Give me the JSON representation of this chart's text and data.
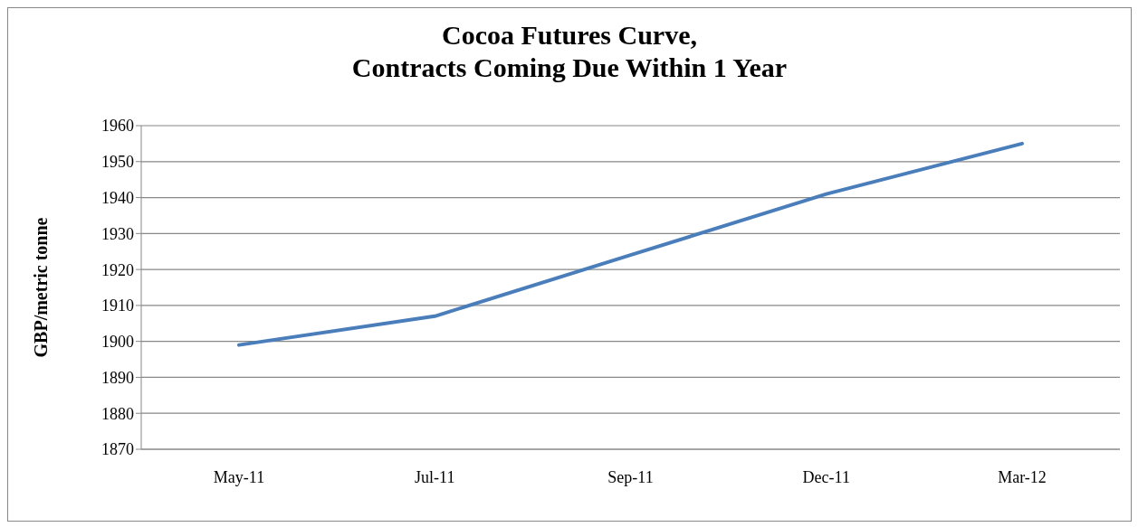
{
  "chart_data": {
    "type": "line",
    "title": "Cocoa Futures Curve,\nContracts Coming Due Within 1 Year",
    "ylabel": "GBP/metric tonne",
    "categories": [
      "May-11",
      "Jul-11",
      "Sep-11",
      "Dec-11",
      "Mar-12"
    ],
    "series": [
      {
        "color": "#4a7ebb",
        "values": [
          1899,
          1907,
          1924,
          1941,
          1955
        ]
      }
    ],
    "ylim": [
      1870,
      1960
    ],
    "yticks": [
      1870,
      1880,
      1890,
      1900,
      1910,
      1920,
      1930,
      1940,
      1950,
      1960
    ],
    "grid": "y"
  }
}
